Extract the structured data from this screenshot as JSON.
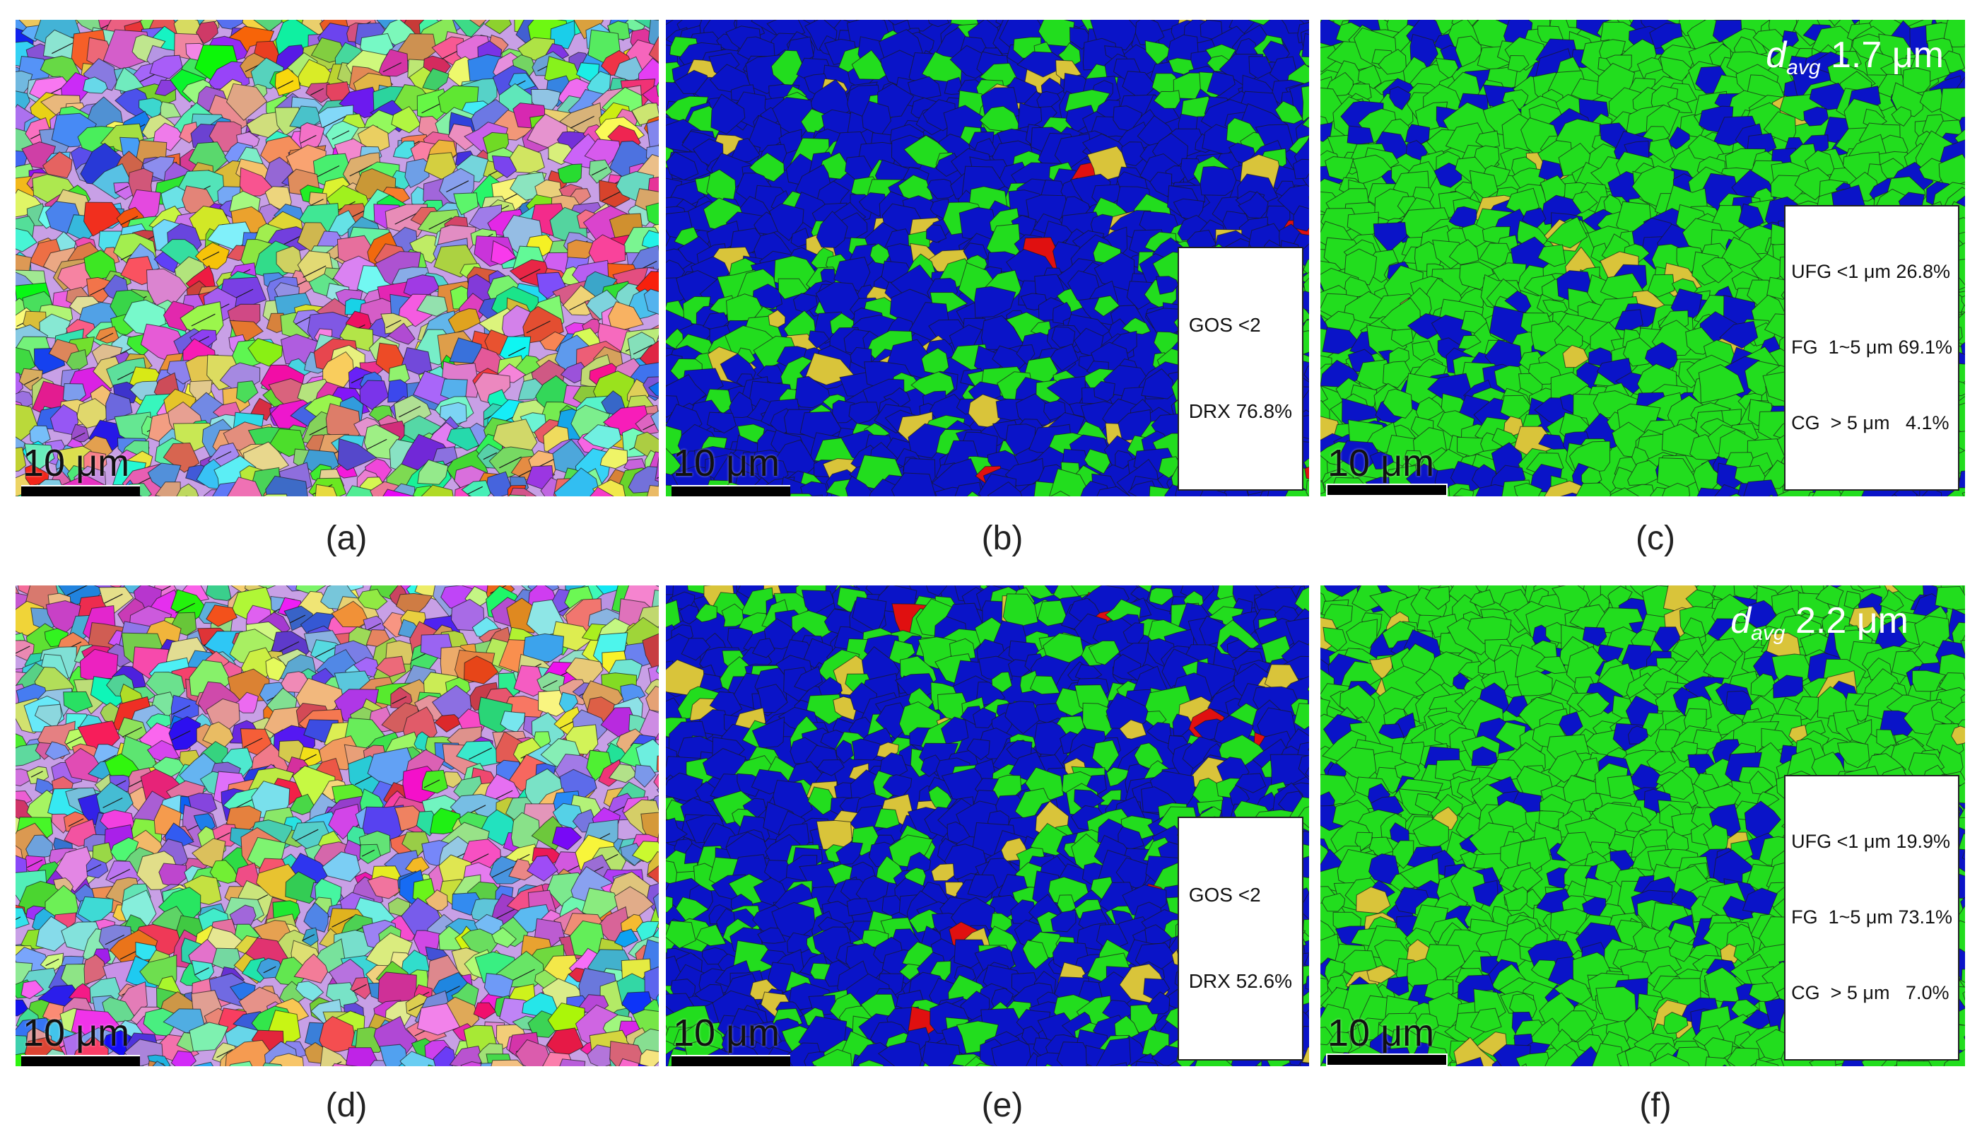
{
  "panels": [
    {
      "id": "a",
      "kind": "ipf",
      "caption": "(a)",
      "scale_label": "10 μm"
    },
    {
      "id": "b",
      "kind": "gos",
      "caption": "(b)",
      "scale_label": "10 μm",
      "box_lines": [
        "GOS <2",
        "DRX 76.8%"
      ]
    },
    {
      "id": "c",
      "kind": "size",
      "caption": "(c)",
      "scale_label": "10 μm",
      "davg": {
        "symbol": "d",
        "subscript": "avg",
        "value": "1.7 μm"
      },
      "box_lines": [
        "UFG <1 μm 26.8%",
        "FG  1~5 μm 69.1%",
        "CG  > 5 μm   4.1%"
      ]
    },
    {
      "id": "d",
      "kind": "ipf",
      "caption": "(d)",
      "scale_label": "10 μm"
    },
    {
      "id": "e",
      "kind": "gos",
      "caption": "(e)",
      "scale_label": "10 μm",
      "box_lines": [
        "GOS <2",
        "DRX 52.6%"
      ]
    },
    {
      "id": "f",
      "kind": "size",
      "caption": "(f)",
      "scale_label": "10 μm",
      "davg": {
        "symbol": "d",
        "subscript": "avg",
        "value": "2.2 μm"
      },
      "box_lines": [
        "UFG <1 μm 19.9%",
        "FG  1~5 μm 73.1%",
        "CG  > 5 μm   7.0%"
      ]
    }
  ],
  "colors": {
    "blue": "#0a14c8",
    "green": "#22dd1e",
    "yellow": "#d9c43a",
    "red": "#e01010",
    "grain_boundary": "#1a1a1a"
  }
}
